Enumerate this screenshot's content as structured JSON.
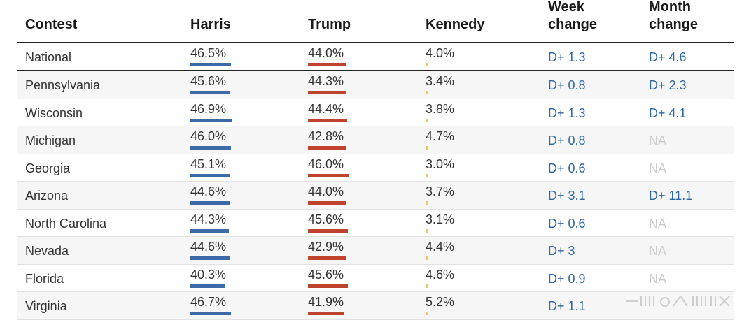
{
  "chart_data": {
    "type": "table",
    "columns": [
      "Contest",
      "Harris",
      "Trump",
      "Kennedy",
      "Week\nchange",
      "Month\nchange"
    ],
    "colors": {
      "harris": "#3b6aa6",
      "trump": "#c0432d",
      "kennedy": "#f0c46a"
    },
    "rows": [
      {
        "contest": "National",
        "harris": "46.5%",
        "trump": "44.0%",
        "kennedy": "4.0%",
        "week": "D+ 1.3",
        "month": "D+ 4.6"
      },
      {
        "contest": "Pennsylvania",
        "harris": "45.6%",
        "trump": "44.3%",
        "kennedy": "3.4%",
        "week": "D+ 0.8",
        "month": "D+ 2.3"
      },
      {
        "contest": "Wisconsin",
        "harris": "46.9%",
        "trump": "44.4%",
        "kennedy": "3.8%",
        "week": "D+ 1.3",
        "month": "D+ 4.1"
      },
      {
        "contest": "Michigan",
        "harris": "46.0%",
        "trump": "42.8%",
        "kennedy": "4.7%",
        "week": "D+ 0.8",
        "month": "NA"
      },
      {
        "contest": "Georgia",
        "harris": "45.1%",
        "trump": "46.0%",
        "kennedy": "3.0%",
        "week": "D+ 0.6",
        "month": "NA"
      },
      {
        "contest": "Arizona",
        "harris": "44.6%",
        "trump": "44.0%",
        "kennedy": "3.7%",
        "week": "D+ 3.1",
        "month": "D+ 11.1"
      },
      {
        "contest": "North Carolina",
        "harris": "44.3%",
        "trump": "45.6%",
        "kennedy": "3.1%",
        "week": "D+ 0.6",
        "month": "NA"
      },
      {
        "contest": "Nevada",
        "harris": "44.6%",
        "trump": "42.9%",
        "kennedy": "4.4%",
        "week": "D+ 3",
        "month": "NA"
      },
      {
        "contest": "Florida",
        "harris": "40.3%",
        "trump": "45.6%",
        "kennedy": "4.6%",
        "week": "D+ 0.9",
        "month": "NA"
      },
      {
        "contest": "Virginia",
        "harris": "46.7%",
        "trump": "41.9%",
        "kennedy": "5.2%",
        "week": "D+ 1.1",
        "month": ""
      }
    ]
  }
}
